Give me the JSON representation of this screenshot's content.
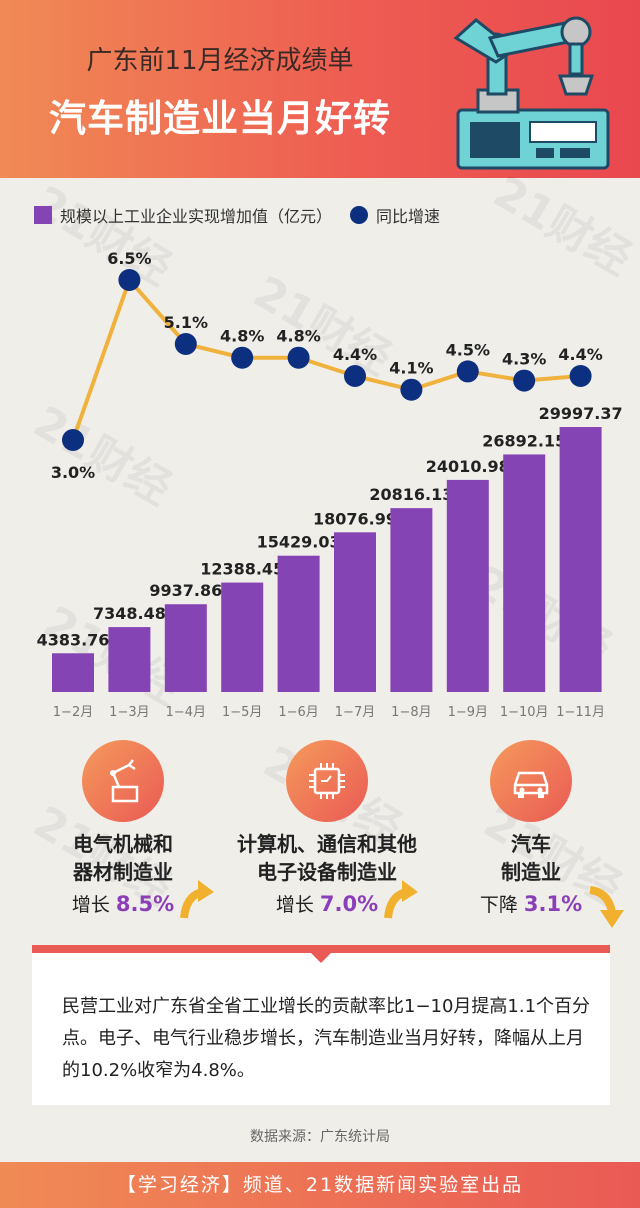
{
  "header": {
    "title_line1": "广东前11月经济成绩单",
    "title_line2": "汽车制造业当月好转"
  },
  "watermark": "21财经",
  "legend": {
    "bar_label": "规模以上工业企业实现增加值（亿元）",
    "line_label": "同比增速"
  },
  "colors": {
    "bar": "#8544b4",
    "line": "#f0b23c",
    "dot": "#0c2f7f",
    "accent": "#ea5a55",
    "highlight": "#8a3fb8"
  },
  "chart_data": {
    "type": "bar",
    "categories": [
      "1−2月",
      "1−3月",
      "1−4月",
      "1−5月",
      "1−6月",
      "1−7月",
      "1−8月",
      "1−9月",
      "1−10月",
      "1−11月"
    ],
    "series": [
      {
        "name": "规模以上工业企业实现增加值（亿元）",
        "type": "bar",
        "values": [
          4383.76,
          7348.48,
          9937.86,
          12388.45,
          15429.03,
          18076.99,
          20816.13,
          24010.98,
          26892.15,
          29997.37
        ],
        "labels": [
          "4383.76",
          "7348.48",
          "9937.86",
          "12388.45",
          "15429.03",
          "18076.99",
          "20816.13",
          "24010.98",
          "26892.15",
          "29997.37"
        ]
      },
      {
        "name": "同比增速",
        "type": "line",
        "values": [
          3.0,
          6.5,
          5.1,
          4.8,
          4.8,
          4.4,
          4.1,
          4.5,
          4.3,
          4.4
        ],
        "labels": [
          "3.0%",
          "6.5%",
          "5.1%",
          "4.8%",
          "4.8%",
          "4.4%",
          "4.1%",
          "4.5%",
          "4.3%",
          "4.4%"
        ]
      }
    ],
    "legend_position": "top-left",
    "grid": false
  },
  "categories_section": [
    {
      "name_line1": "电气机械和",
      "name_line2": "器材制造业",
      "change_label": "增长",
      "change_value": "8.5%",
      "direction": "up",
      "icon": "robot-arm-icon"
    },
    {
      "name_line1": "计算机、通信和其他",
      "name_line2": "电子设备制造业",
      "change_label": "增长",
      "change_value": "7.0%",
      "direction": "up",
      "icon": "chip-icon"
    },
    {
      "name_line1": "汽车",
      "name_line2": "制造业",
      "change_label": "下降",
      "change_value": "3.1%",
      "direction": "down",
      "icon": "car-icon"
    }
  ],
  "summary": "民营工业对广东省全省工业增长的贡献率比1−10月提高1.1个百分点。电子、电气行业稳步增长，汽车制造业当月好转，降幅从上月的10.2%收窄为4.8%。",
  "source": "数据来源：广东统计局",
  "footer": "【学习经济】频道、21数据新闻实验室出品"
}
